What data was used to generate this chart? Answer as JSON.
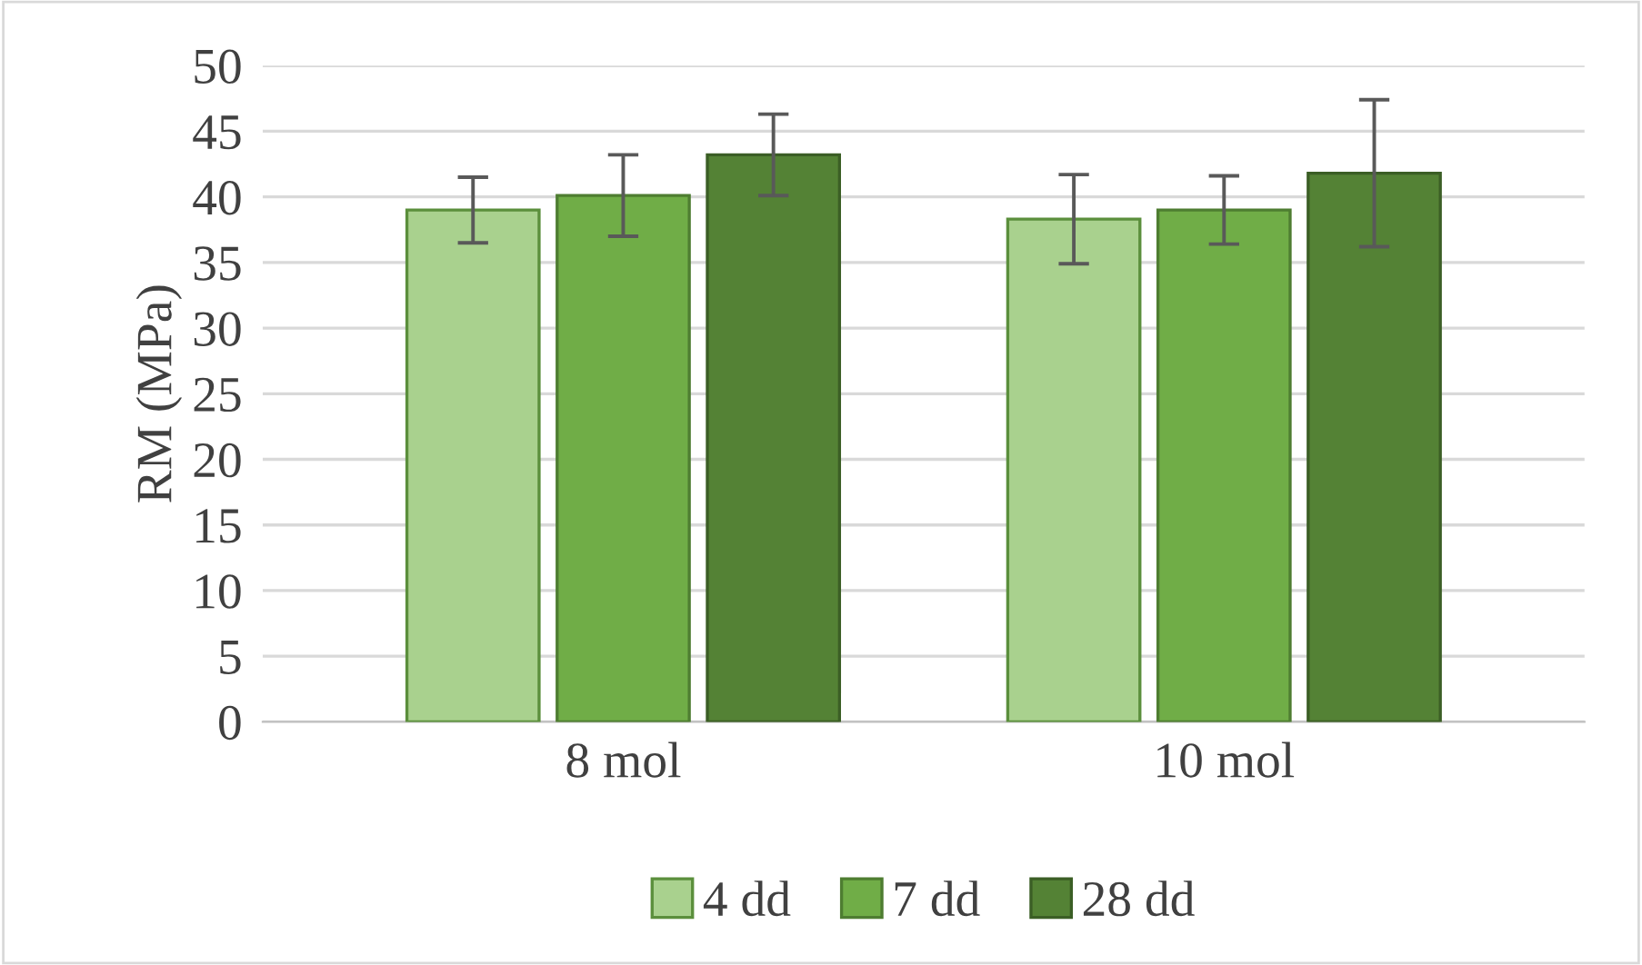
{
  "chart_data": {
    "type": "bar",
    "ylabel": "RM (MPa)",
    "categories": [
      "8 mol",
      "10 mol"
    ],
    "series": [
      {
        "name": "4 dd",
        "color": "#a9d18e",
        "values": [
          39.0,
          38.3
        ],
        "errors": [
          2.5,
          3.4
        ]
      },
      {
        "name": "7 dd",
        "color": "#70ad47",
        "values": [
          40.1,
          39.0
        ],
        "errors": [
          3.1,
          2.6
        ]
      },
      {
        "name": "28 dd",
        "color": "#548235",
        "values": [
          43.2,
          41.8
        ],
        "errors": [
          3.1,
          5.6
        ]
      }
    ],
    "ylim": [
      0,
      50
    ],
    "yticks": [
      0,
      5,
      10,
      15,
      20,
      25,
      30,
      35,
      40,
      45,
      50
    ],
    "grid": "y",
    "legend": "bottom"
  }
}
